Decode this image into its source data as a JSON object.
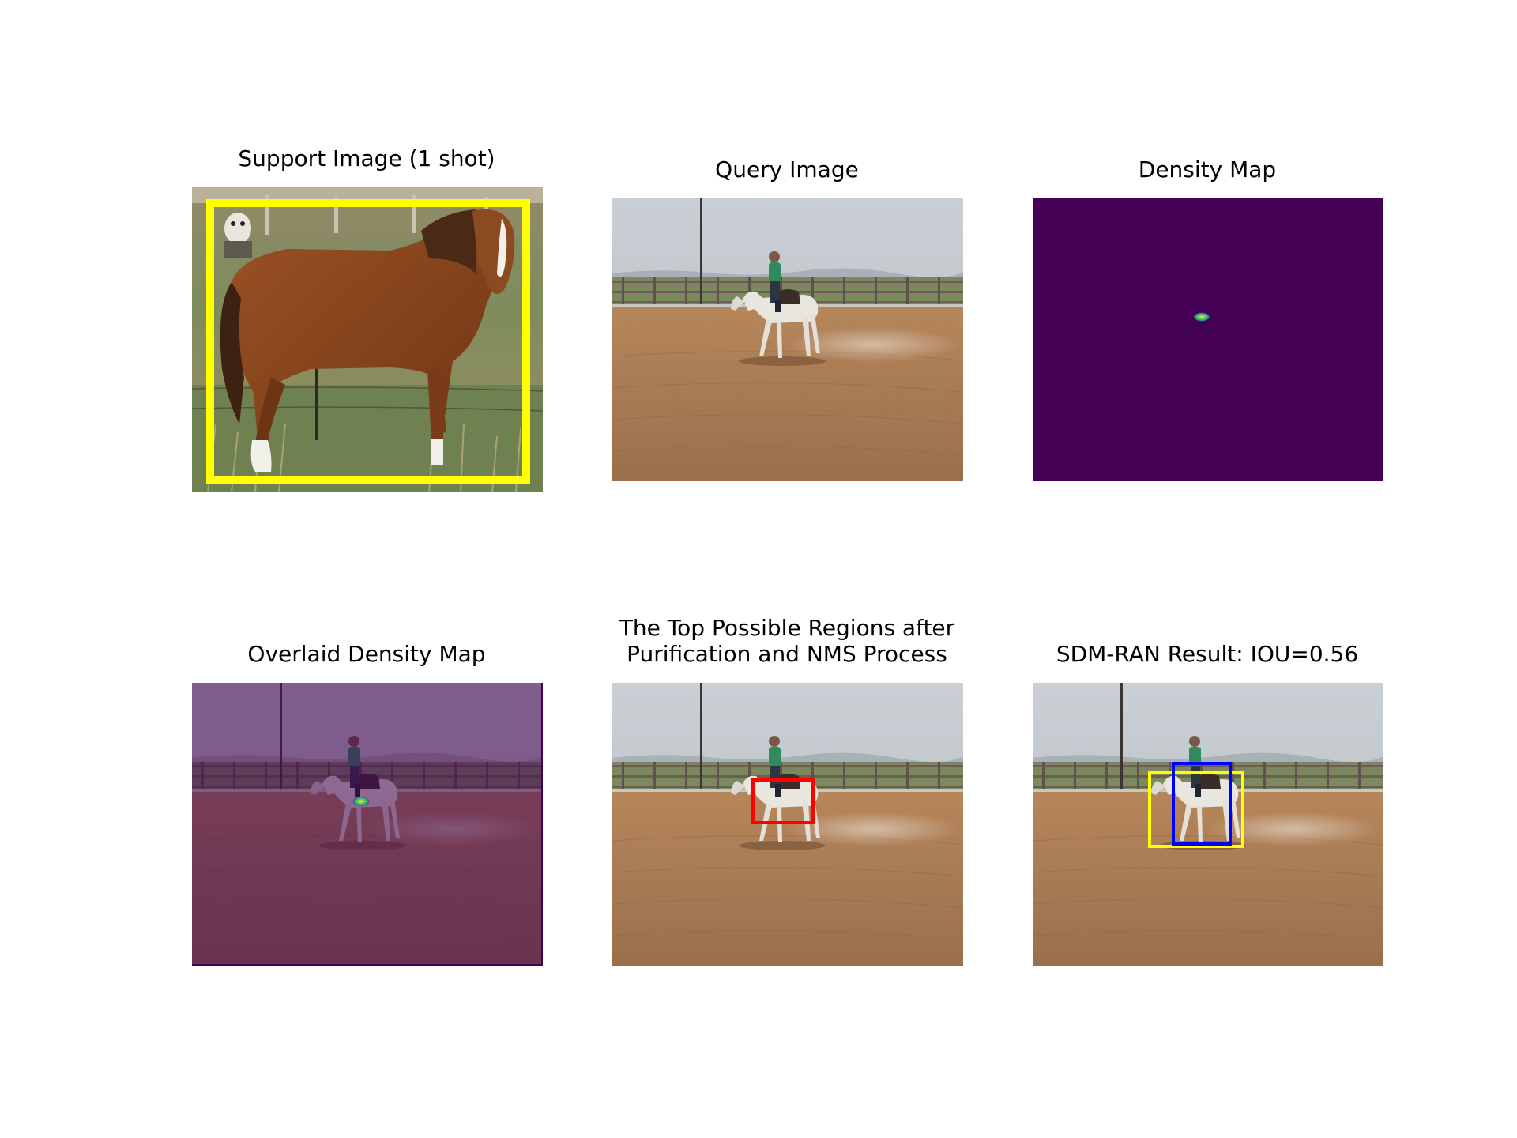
{
  "panels": [
    {
      "id": "support",
      "title": "Support Image (1 shot)"
    },
    {
      "id": "query",
      "title": "Query Image"
    },
    {
      "id": "density",
      "title": "Density Map"
    },
    {
      "id": "overlaid",
      "title": "Overlaid Density Map"
    },
    {
      "id": "regions",
      "title": "The Top Possible Regions after\nPurification and NMS Process"
    },
    {
      "id": "result",
      "title": "SDM-RAN Result: IOU=0.56"
    }
  ],
  "colors": {
    "support_box": "#ffff00",
    "density_background": "#440154",
    "region_box": "#ff0000",
    "prediction_box": "#0000ff",
    "ground_truth_box": "#ffff00"
  }
}
